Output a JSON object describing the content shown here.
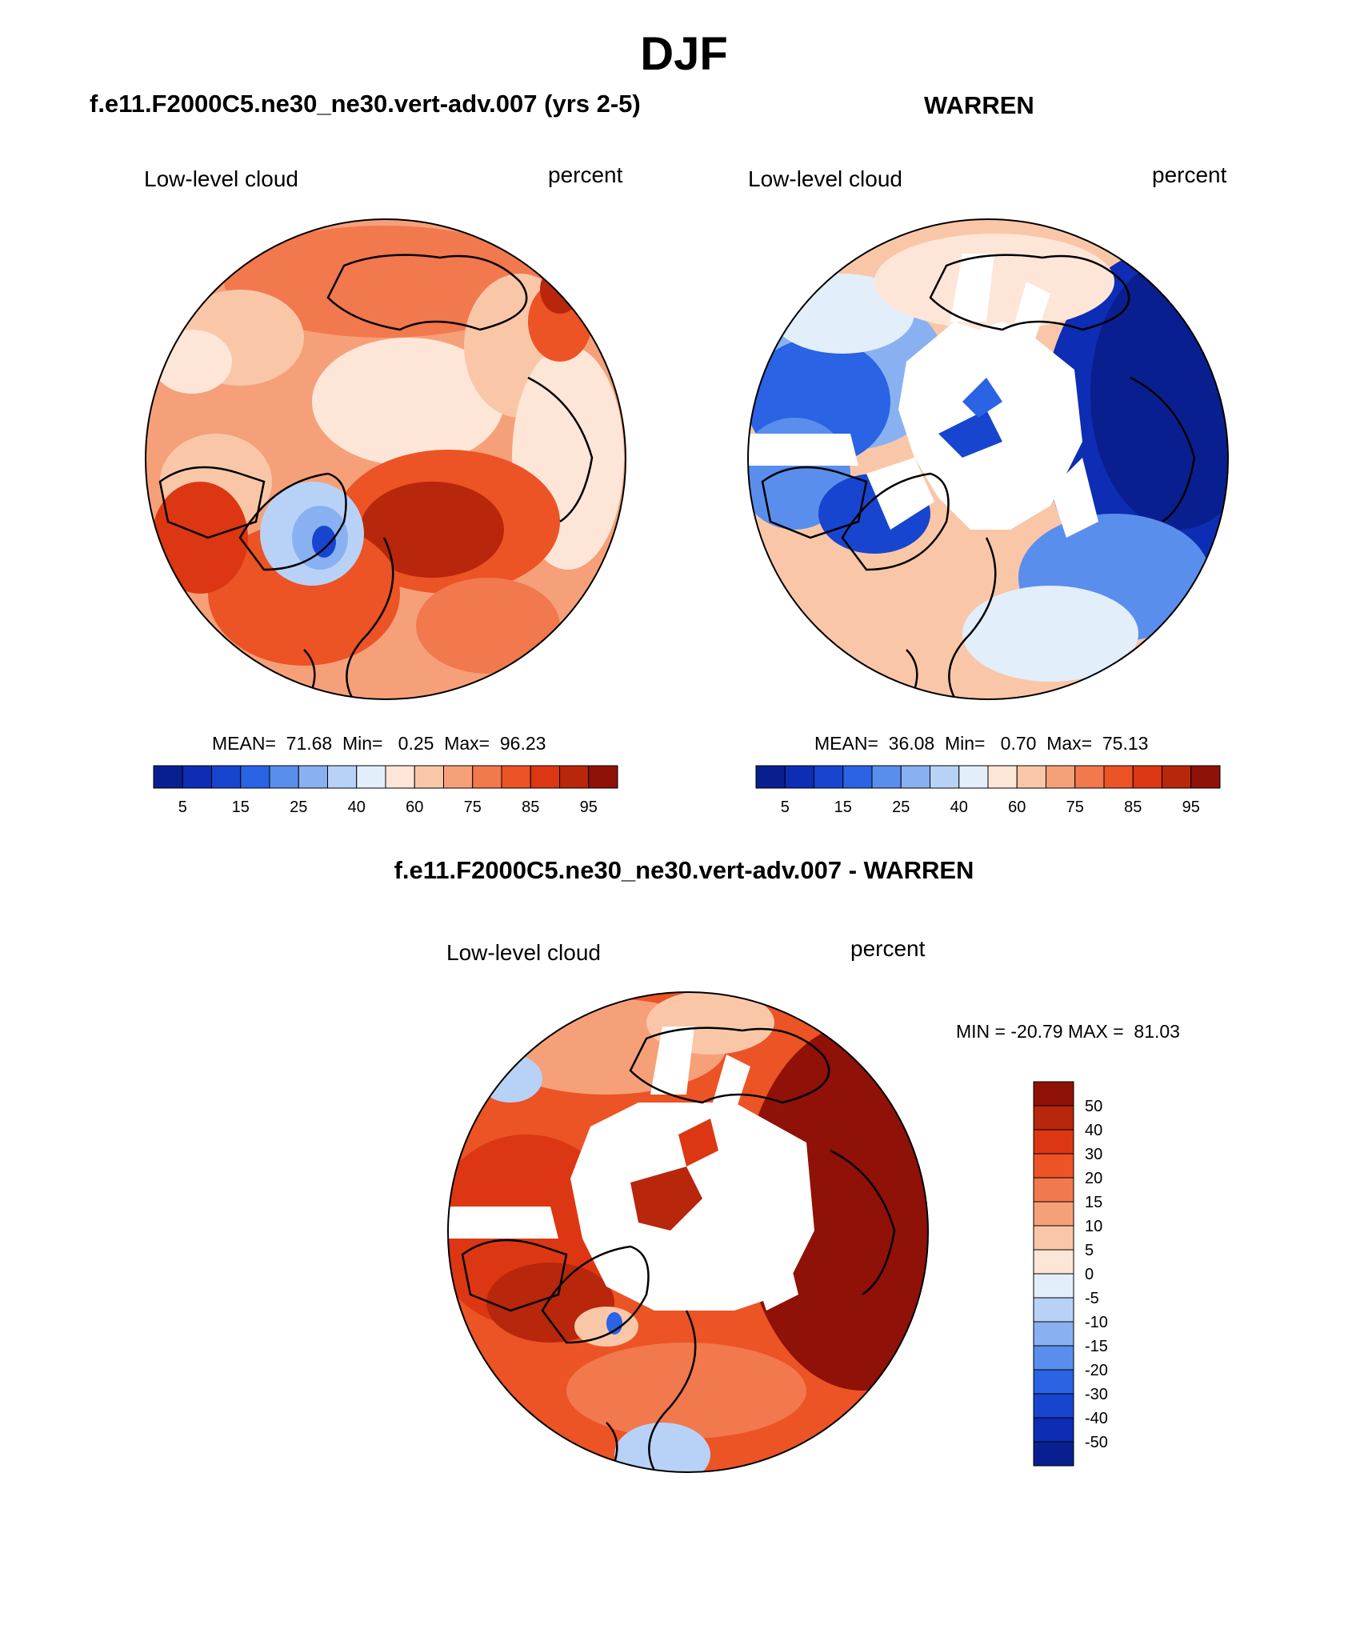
{
  "figure": {
    "title": "DJF",
    "panel_left_title": "f.e11.F2000C5.ne30_ne30.vert-adv.007 (yrs 2-5)",
    "panel_right_title": "WARREN",
    "panel_bottom_title": "f.e11.F2000C5.ne30_ne30.vert-adv.007 - WARREN"
  },
  "panels": {
    "left": {
      "variable": "Low-level cloud",
      "units": "percent",
      "stats": "MEAN=  71.68  Min=   0.25  Max=  96.23"
    },
    "right": {
      "variable": "Low-level cloud",
      "units": "percent",
      "stats": "MEAN=  36.08  Min=   0.70  Max=  75.13"
    },
    "bottom": {
      "variable": "Low-level cloud",
      "units": "percent",
      "stats": "MIN = -20.79 MAX =  81.03"
    }
  },
  "colorbar_abs": {
    "colors": [
      "#0a1f8f",
      "#0d2db4",
      "#1745cf",
      "#2a63e4",
      "#5a8eec",
      "#89b1f1",
      "#b8d2f7",
      "#e3eefb",
      "#fde6d8",
      "#f9c7a8",
      "#f6a07a",
      "#f2784d",
      "#ec5325",
      "#dc3712",
      "#b8260b",
      "#8f1108"
    ],
    "tick_labels": [
      "5",
      "15",
      "25",
      "40",
      "60",
      "75",
      "85",
      "95"
    ]
  },
  "colorbar_diff": {
    "colors": [
      "#8f1108",
      "#b8260b",
      "#dc3712",
      "#ec5325",
      "#f2784d",
      "#f6a07a",
      "#f9c7a8",
      "#fde6d8",
      "#e3eefb",
      "#b8d2f7",
      "#89b1f1",
      "#5a8eec",
      "#2a63e4",
      "#1745cf",
      "#0d2db4",
      "#0a1f8f"
    ],
    "tick_labels": [
      "50",
      "40",
      "30",
      "20",
      "15",
      "10",
      "5",
      "0",
      "-5",
      "-10",
      "-15",
      "-20",
      "-30",
      "-40",
      "-50"
    ]
  }
}
